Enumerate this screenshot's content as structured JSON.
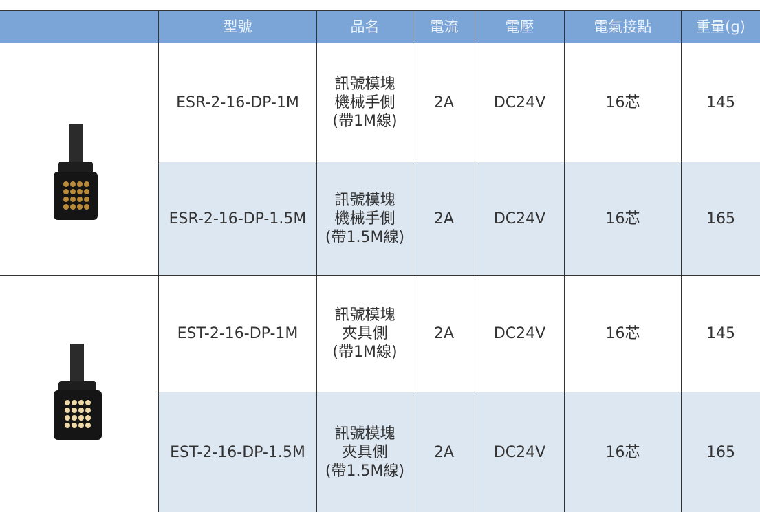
{
  "table": {
    "headers": [
      "型號",
      "品名",
      "電流",
      "電壓",
      "電氣接點",
      "重量(g)"
    ],
    "rows": [
      [
        "ESR-2-16-DP-1M",
        [
          "訊號模塊",
          "機械手側",
          "(帶1M線)"
        ],
        "2A",
        "DC24V",
        "16芯",
        "145"
      ],
      [
        "ESR-2-16-DP-1.5M",
        [
          "訊號模塊",
          "機械手側",
          "(帶1.5M線)"
        ],
        "2A",
        "DC24V",
        "16芯",
        "165"
      ],
      [
        "EST-2-16-DP-1M",
        [
          "訊號模塊",
          "夾具側",
          "(帶1M線)"
        ],
        "2A",
        "DC24V",
        "16芯",
        "145"
      ],
      [
        "EST-2-16-DP-1.5M",
        [
          "訊號模塊",
          "夾具側",
          "(帶1.5M線)"
        ],
        "2A",
        "DC24V",
        "16芯",
        "165"
      ]
    ]
  }
}
